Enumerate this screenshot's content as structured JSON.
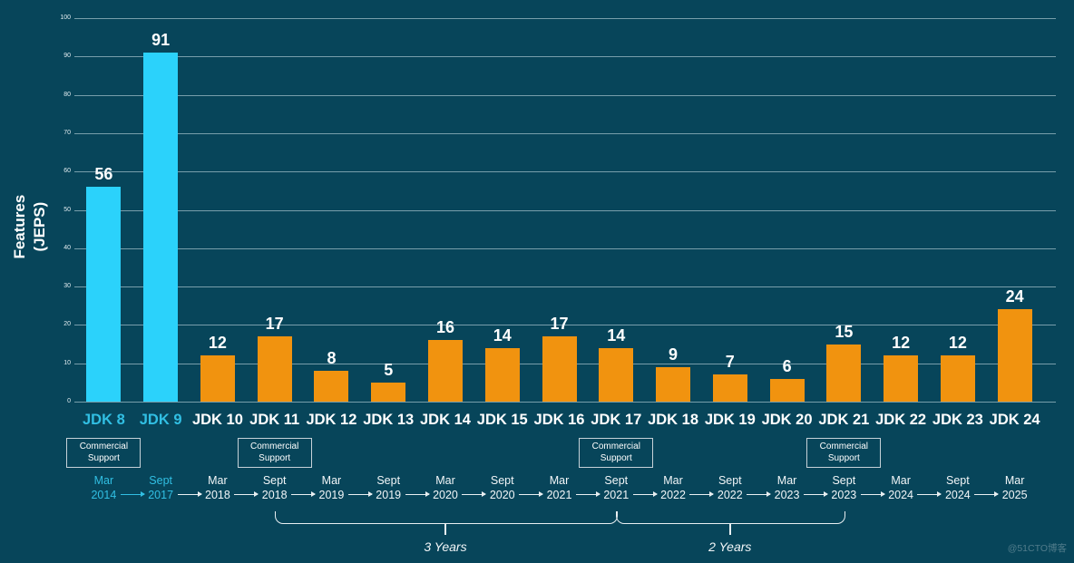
{
  "chart_data": {
    "type": "bar",
    "title": "",
    "ylabel_lines": [
      "Features",
      "(JEPS)"
    ],
    "ylim": [
      0,
      100
    ],
    "yticks": [
      0,
      10,
      20,
      30,
      40,
      50,
      60,
      70,
      80,
      90,
      100
    ],
    "grid": true,
    "legend": "none",
    "categories": [
      "JDK 8",
      "JDK 9",
      "JDK 10",
      "JDK 11",
      "JDK 12",
      "JDK 13",
      "JDK 14",
      "JDK 15",
      "JDK 16",
      "JDK 17",
      "JDK 18",
      "JDK 19",
      "JDK 20",
      "JDK 21",
      "JDK 22",
      "JDK 23",
      "JDK 24"
    ],
    "values": [
      56,
      91,
      12,
      17,
      8,
      5,
      16,
      14,
      17,
      14,
      9,
      7,
      6,
      15,
      12,
      12,
      24
    ],
    "highlight_indices": [
      0,
      1
    ],
    "commercial_support_indices": [
      0,
      3,
      9,
      13
    ],
    "commercial_support_label_lines": [
      "Commercial",
      "Support"
    ],
    "timeline": [
      {
        "month": "Mar",
        "year": "2014"
      },
      {
        "month": "Sept",
        "year": "2017"
      },
      {
        "month": "Mar",
        "year": "2018"
      },
      {
        "month": "Sept",
        "year": "2018"
      },
      {
        "month": "Mar",
        "year": "2019"
      },
      {
        "month": "Sept",
        "year": "2019"
      },
      {
        "month": "Mar",
        "year": "2020"
      },
      {
        "month": "Sept",
        "year": "2020"
      },
      {
        "month": "Mar",
        "year": "2021"
      },
      {
        "month": "Sept",
        "year": "2021"
      },
      {
        "month": "Mar",
        "year": "2022"
      },
      {
        "month": "Sept",
        "year": "2022"
      },
      {
        "month": "Mar",
        "year": "2023"
      },
      {
        "month": "Sept",
        "year": "2023"
      },
      {
        "month": "Mar",
        "year": "2024"
      },
      {
        "month": "Sept",
        "year": "2024"
      },
      {
        "month": "Mar",
        "year": "2025"
      }
    ],
    "timeline_highlight_indices": [
      0,
      1
    ],
    "braces": [
      {
        "label": "3 Years",
        "from_index": 3,
        "to_index": 9
      },
      {
        "label": "2 Years",
        "from_index": 9,
        "to_index": 13
      }
    ],
    "colors": {
      "background": "#07455A",
      "bar_highlight": "#2BD2FB",
      "bar_default": "#F1930F",
      "text_highlight": "#31BFE3",
      "text_default": "#FFFFFF",
      "gridline": "rgba(213,231,238,0.55)"
    }
  },
  "watermark": "@51CTO博客"
}
